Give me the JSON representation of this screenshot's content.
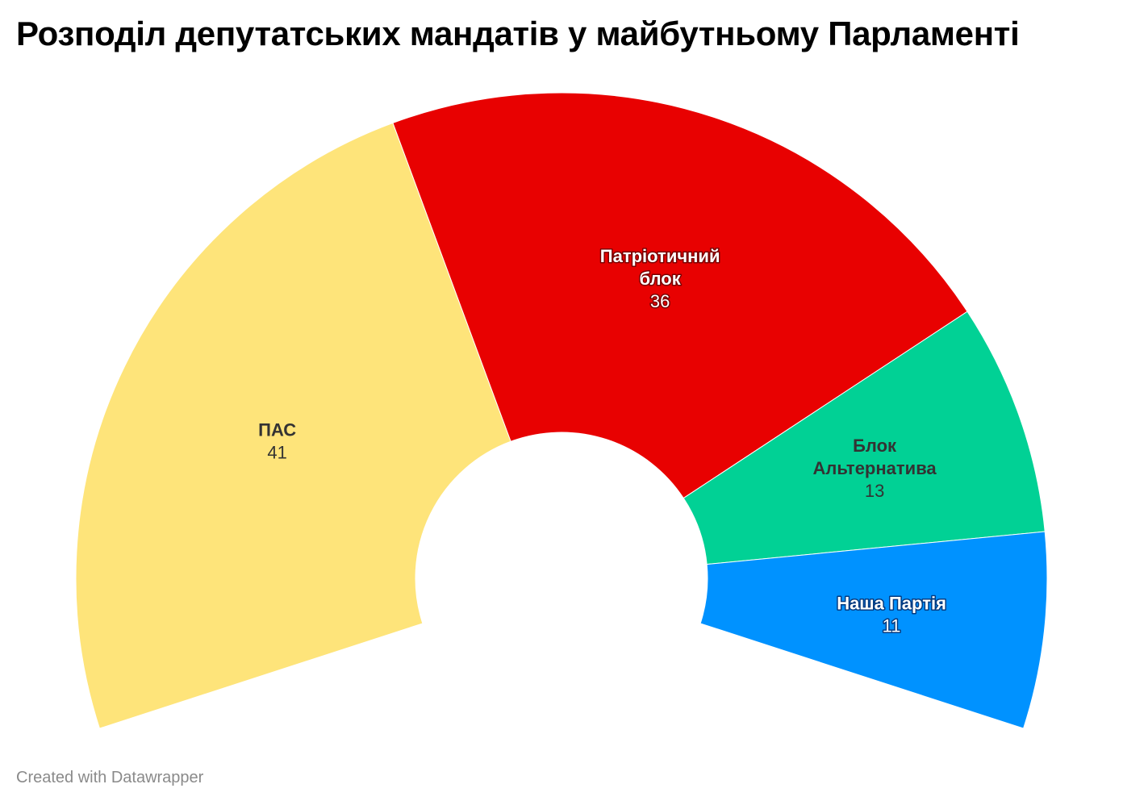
{
  "chart_data": {
    "type": "pie",
    "subtype": "semicircle-donut",
    "title": "Розподіл депутатських мандатів у майбутньому Парламенті",
    "slices": [
      {
        "label": "ПАС",
        "value": 41,
        "color": "#fee47a",
        "label_lines": [
          "ПАС"
        ],
        "text_color": "#333333",
        "halo": "#fee47a"
      },
      {
        "label": "Патріотичний блок",
        "value": 36,
        "color": "#e80101",
        "label_lines": [
          "Патріотичний",
          "блок"
        ],
        "text_color": "#ffffff",
        "halo": "#7a0000"
      },
      {
        "label": "Блок Альтернатива",
        "value": 13,
        "color": "#01d195",
        "label_lines": [
          "Блок",
          "Альтернатива"
        ],
        "text_color": "#333333",
        "halo": "#01d195"
      },
      {
        "label": "Наша Партія",
        "value": 11,
        "color": "#0092ff",
        "label_lines": [
          "Наша Партія"
        ],
        "text_color": "#ffffff",
        "halo": "#003a80"
      }
    ],
    "total": 101
  },
  "footer": {
    "credit": "Created with Datawrapper"
  }
}
